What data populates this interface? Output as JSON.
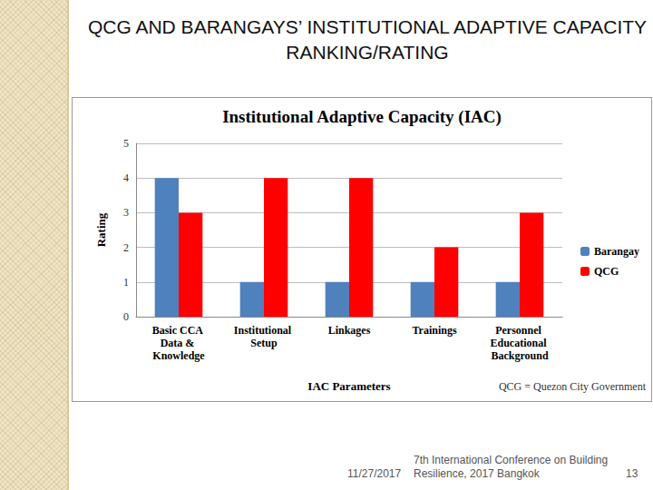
{
  "slide_title": "QCG AND BARANGAYS’ INSTITUTIONAL ADAPTIVE CAPACITY RANKING/RATING",
  "footer": {
    "date": "11/27/2017",
    "conference": "7th International Conference on Building Resilience, 2017 Bangkok",
    "page": 13
  },
  "chart_data": {
    "type": "bar",
    "title": "Institutional Adaptive Capacity (IAC)",
    "x_label": "IAC Parameters",
    "y_label": "Rating",
    "annotation": "QCG = Quezon City Government",
    "categories": [
      "Basic CCA Data & Knowledge",
      "Institutional Setup",
      "Linkages",
      "Trainings",
      "Personnel Educational Background"
    ],
    "series": [
      {
        "name": "Barangay",
        "color": "#4f81bd",
        "values": [
          4,
          1,
          1,
          1,
          1
        ]
      },
      {
        "name": "QCG",
        "color": "#ff0000",
        "values": [
          3,
          4,
          4,
          2,
          3
        ]
      }
    ],
    "ylim": [
      0,
      5
    ],
    "yticks": [
      0,
      1,
      2,
      3,
      4,
      5
    ],
    "grid": true,
    "legend": "right"
  }
}
